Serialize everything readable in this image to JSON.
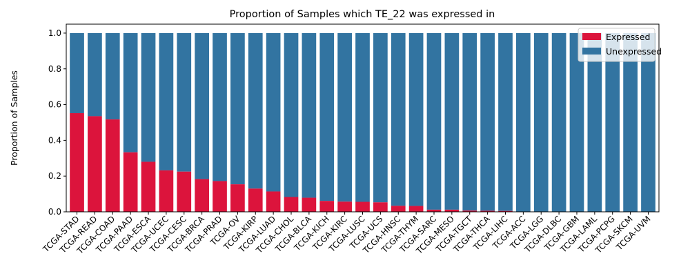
{
  "chart_data": {
    "type": "bar",
    "stacked": true,
    "title": "Proportion of Samples which TE_22 was expressed in",
    "xlabel": "",
    "ylabel": "Proportion of Samples",
    "ylim": [
      0,
      1.05
    ],
    "yticks": [
      "0.0",
      "0.2",
      "0.4",
      "0.6",
      "0.8",
      "1.0"
    ],
    "grid": false,
    "legend_position": "top-right",
    "categories": [
      "TCGA-STAD",
      "TCGA-READ",
      "TCGA-COAD",
      "TCGA-PAAD",
      "TCGA-ESCA",
      "TCGA-UCEC",
      "TCGA-CESC",
      "TCGA-BRCA",
      "TCGA-PRAD",
      "TCGA-OV",
      "TCGA-KIRP",
      "TCGA-LUAD",
      "TCGA-CHOL",
      "TCGA-BLCA",
      "TCGA-KICH",
      "TCGA-KIRC",
      "TCGA-LUSC",
      "TCGA-UCS",
      "TCGA-HNSC",
      "TCGA-THYM",
      "TCGA-SARC",
      "TCGA-MESO",
      "TCGA-TGCT",
      "TCGA-THCA",
      "TCGA-LIHC",
      "TCGA-ACC",
      "TCGA-LGG",
      "TCGA-DLBC",
      "TCGA-GBM",
      "TCGA-LAML",
      "TCGA-PCPG",
      "TCGA-SKCM",
      "TCGA-UVM"
    ],
    "series": [
      {
        "name": "Expressed",
        "color": "#dc143c",
        "values": [
          0.552,
          0.535,
          0.517,
          0.333,
          0.28,
          0.232,
          0.225,
          0.183,
          0.172,
          0.154,
          0.13,
          0.114,
          0.083,
          0.079,
          0.061,
          0.057,
          0.056,
          0.053,
          0.034,
          0.033,
          0.012,
          0.012,
          0.007,
          0.006,
          0.005,
          0,
          0,
          0,
          0,
          0,
          0,
          0,
          0
        ]
      },
      {
        "name": "Unexpressed",
        "color": "#3274a1",
        "values": [
          0.448,
          0.465,
          0.483,
          0.667,
          0.72,
          0.768,
          0.775,
          0.817,
          0.828,
          0.846,
          0.87,
          0.886,
          0.917,
          0.921,
          0.939,
          0.943,
          0.944,
          0.947,
          0.966,
          0.967,
          0.988,
          0.988,
          0.993,
          0.994,
          0.995,
          1,
          1,
          1,
          1,
          1,
          1,
          1,
          1
        ]
      }
    ]
  }
}
